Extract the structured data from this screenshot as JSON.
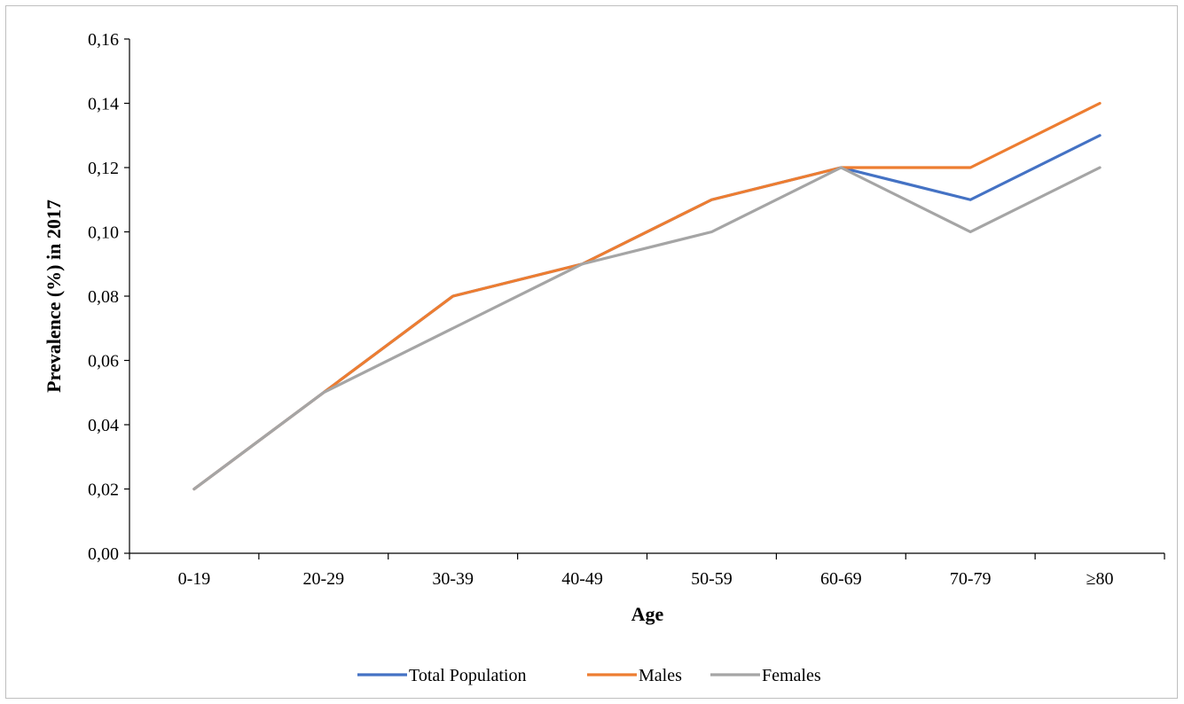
{
  "chart_data": {
    "type": "line",
    "xlabel": "Age",
    "ylabel": "Prevalence (%) in 2017",
    "categories": [
      "0-19",
      "20-29",
      "30-39",
      "40-49",
      "50-59",
      "60-69",
      "70-79",
      "≥80"
    ],
    "ylim": [
      0,
      0.16
    ],
    "yticks": [
      "0,00",
      "0,02",
      "0,04",
      "0,06",
      "0,08",
      "0,10",
      "0,12",
      "0,14",
      "0,16"
    ],
    "grid": false,
    "legend_position": "bottom",
    "series": [
      {
        "name": "Total Population",
        "color": "#4472c4",
        "values": [
          0.02,
          0.05,
          0.08,
          0.09,
          0.11,
          0.12,
          0.11,
          0.13
        ]
      },
      {
        "name": "Males",
        "color": "#ed7d31",
        "values": [
          0.02,
          0.05,
          0.08,
          0.09,
          0.11,
          0.12,
          0.12,
          0.14
        ]
      },
      {
        "name": "Females",
        "color": "#a5a5a5",
        "values": [
          0.02,
          0.05,
          0.07,
          0.09,
          0.1,
          0.12,
          0.1,
          0.12
        ]
      }
    ]
  }
}
